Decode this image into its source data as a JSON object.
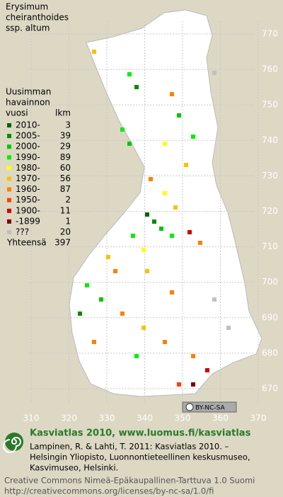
{
  "title": [
    "Erysimum",
    "cheiranthoides",
    "ssp. altum"
  ],
  "legend": {
    "heading": [
      "Uusimman",
      "havainnon",
      "vuosi"
    ],
    "count_heading": "lkm",
    "rows": [
      {
        "label": "2010-",
        "count": 3,
        "color": "#006400"
      },
      {
        "label": "2005-",
        "count": 39,
        "color": "#008c00"
      },
      {
        "label": "2000-",
        "count": 29,
        "color": "#00c800"
      },
      {
        "label": "1990-",
        "count": 89,
        "color": "#00f000"
      },
      {
        "label": "1980-",
        "count": 60,
        "color": "#ffff00"
      },
      {
        "label": "1970-",
        "count": 56,
        "color": "#ffc000"
      },
      {
        "label": "1960-",
        "count": 87,
        "color": "#ff8000"
      },
      {
        "label": "1950-",
        "count": 2,
        "color": "#ff4000"
      },
      {
        "label": "1900-",
        "count": 11,
        "color": "#d00000"
      },
      {
        "label": "-1899",
        "count": 1,
        "color": "#800000"
      },
      {
        "label": "???",
        "count": 20,
        "color": "#c0c0c0"
      }
    ],
    "total_label": "Yhteensä",
    "total": 397
  },
  "grid": {
    "y_labels": [
      770,
      760,
      750,
      740,
      730,
      720,
      710,
      700,
      690,
      680,
      670
    ],
    "x_labels": [
      310,
      320,
      330,
      340,
      350,
      360,
      370
    ]
  },
  "badge": "BY-NC-SA",
  "footer": {
    "site": "Kasviatlas 2010, www.luomus.fi/kasviatlas",
    "citation": [
      "Lampinen, R. & Lahti, T. 2011: Kasviatlas 2010. –",
      "Helsingin Yliopisto, Luonnontieteellinen keskusmuseo,",
      "Kasvimuseo, Helsinki."
    ],
    "license": [
      "Creative Commons Nimeä-Epäkaupallinen-Tarttuva 1.0 Suomi",
      "http://creativecommons.org/licenses/by-nc-sa/1.0/fi"
    ]
  }
}
